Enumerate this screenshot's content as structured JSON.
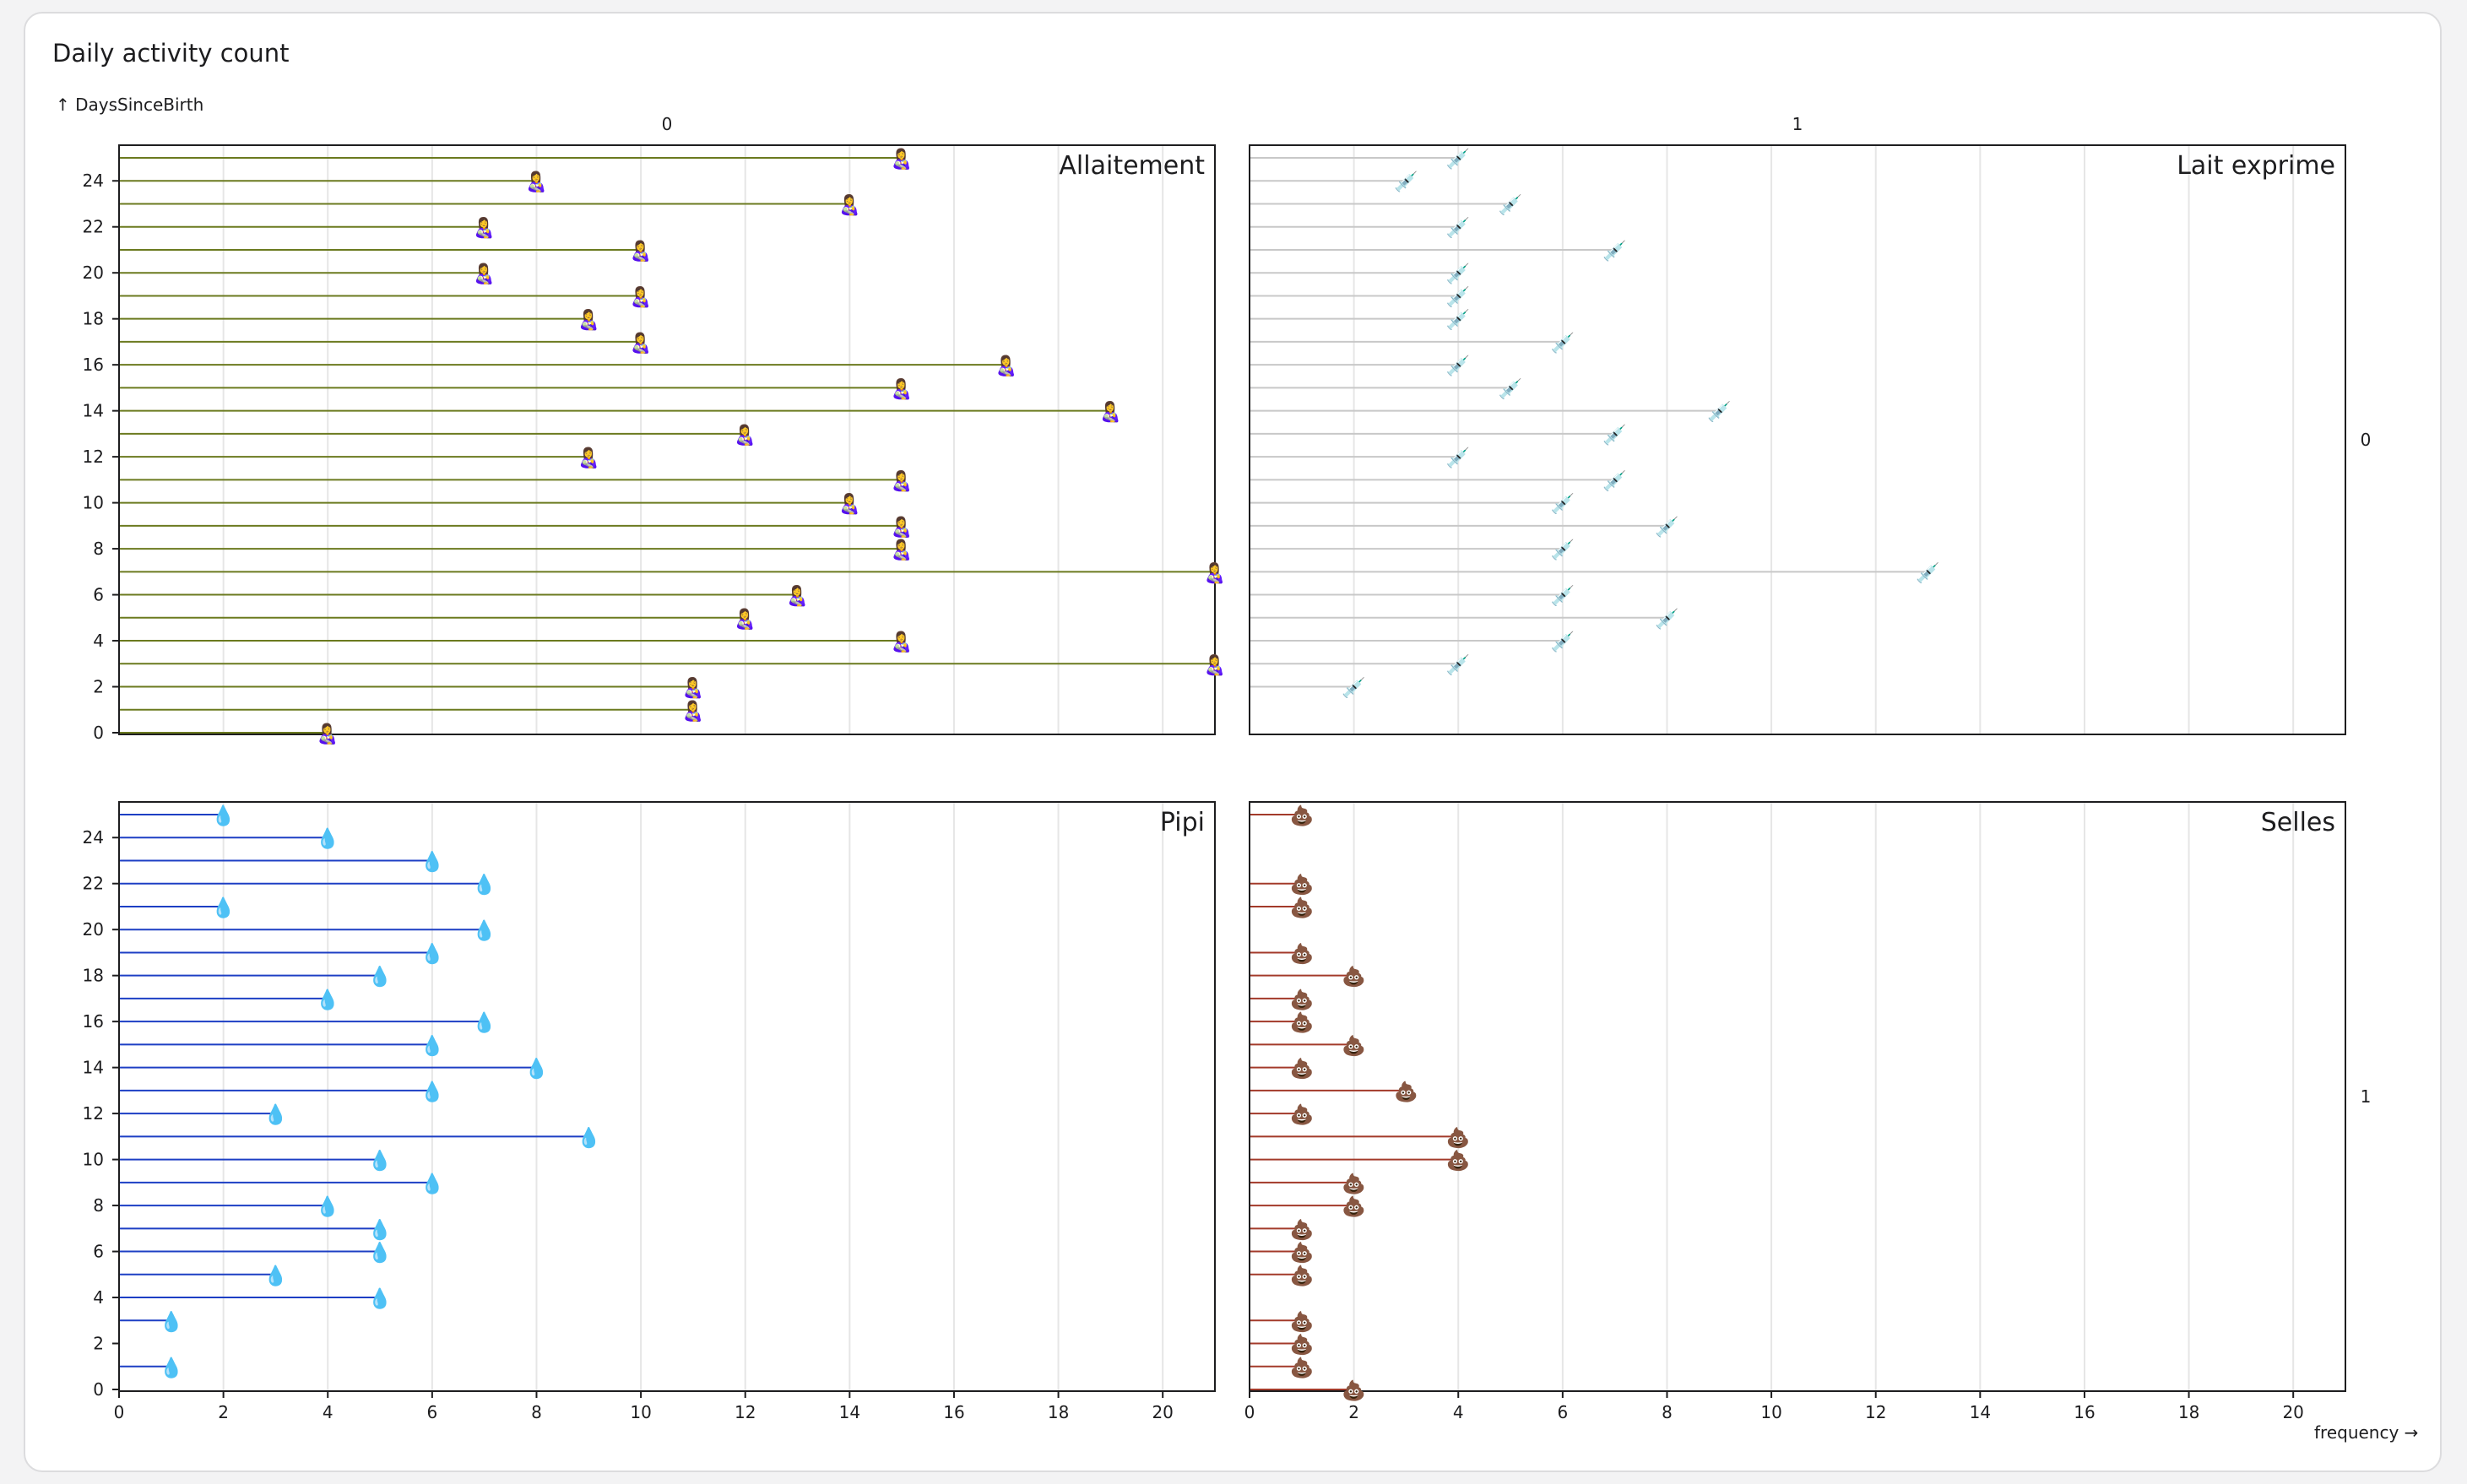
{
  "card": {
    "title": "Daily activity count"
  },
  "chart_data": {
    "type": "lollipop-facet",
    "title": "Daily activity count",
    "ylabel": "↑ DaysSinceBirth",
    "xlabel": "frequency →",
    "xlim": [
      0,
      21
    ],
    "ylim": [
      0,
      25
    ],
    "x_ticks": [
      0,
      2,
      4,
      6,
      8,
      10,
      12,
      14,
      16,
      18,
      20
    ],
    "y_ticks": [
      0,
      2,
      4,
      6,
      8,
      10,
      12,
      14,
      16,
      18,
      20,
      22,
      24
    ],
    "fx_labels": [
      "0",
      "1"
    ],
    "fy_labels": [
      "0",
      "1"
    ],
    "facets": [
      {
        "name": "Allaitement",
        "fx": 0,
        "fy": 0,
        "color": "#6b7a1f",
        "symbol": "👩‍🍼",
        "points": [
          [
            0,
            4
          ],
          [
            1,
            11
          ],
          [
            2,
            11
          ],
          [
            3,
            21
          ],
          [
            4,
            15
          ],
          [
            5,
            12
          ],
          [
            6,
            13
          ],
          [
            7,
            21
          ],
          [
            8,
            15
          ],
          [
            9,
            15
          ],
          [
            10,
            14
          ],
          [
            11,
            15
          ],
          [
            12,
            9
          ],
          [
            13,
            12
          ],
          [
            14,
            19
          ],
          [
            15,
            15
          ],
          [
            16,
            17
          ],
          [
            17,
            10
          ],
          [
            18,
            9
          ],
          [
            19,
            10
          ],
          [
            20,
            7
          ],
          [
            21,
            10
          ],
          [
            22,
            7
          ],
          [
            23,
            14
          ],
          [
            24,
            8
          ],
          [
            25,
            15
          ]
        ]
      },
      {
        "name": "Lait exprime",
        "fx": 1,
        "fy": 0,
        "color": "#c8c8c8",
        "symbol": "💉",
        "points": [
          [
            2,
            2
          ],
          [
            3,
            4
          ],
          [
            4,
            6
          ],
          [
            5,
            8
          ],
          [
            6,
            6
          ],
          [
            7,
            13
          ],
          [
            8,
            6
          ],
          [
            9,
            8
          ],
          [
            10,
            6
          ],
          [
            11,
            7
          ],
          [
            12,
            4
          ],
          [
            13,
            7
          ],
          [
            14,
            9
          ],
          [
            15,
            5
          ],
          [
            16,
            4
          ],
          [
            17,
            6
          ],
          [
            18,
            4
          ],
          [
            19,
            4
          ],
          [
            20,
            4
          ],
          [
            21,
            7
          ],
          [
            22,
            4
          ],
          [
            23,
            5
          ],
          [
            24,
            3
          ],
          [
            25,
            4
          ]
        ]
      },
      {
        "name": "Pipi",
        "fx": 0,
        "fy": 1,
        "color": "#1d3fc4",
        "symbol": "💧",
        "points": [
          [
            1,
            1
          ],
          [
            3,
            1
          ],
          [
            4,
            5
          ],
          [
            5,
            3
          ],
          [
            6,
            5
          ],
          [
            7,
            5
          ],
          [
            8,
            4
          ],
          [
            9,
            6
          ],
          [
            10,
            5
          ],
          [
            11,
            9
          ],
          [
            12,
            3
          ],
          [
            13,
            6
          ],
          [
            14,
            8
          ],
          [
            15,
            6
          ],
          [
            16,
            7
          ],
          [
            17,
            4
          ],
          [
            18,
            5
          ],
          [
            19,
            6
          ],
          [
            20,
            7
          ],
          [
            21,
            2
          ],
          [
            22,
            7
          ],
          [
            23,
            6
          ],
          [
            24,
            4
          ],
          [
            25,
            2
          ]
        ]
      },
      {
        "name": "Selles",
        "fx": 1,
        "fy": 1,
        "color": "#a33a2a",
        "symbol": "💩",
        "points": [
          [
            0,
            2
          ],
          [
            1,
            1
          ],
          [
            2,
            1
          ],
          [
            3,
            1
          ],
          [
            5,
            1
          ],
          [
            6,
            1
          ],
          [
            7,
            1
          ],
          [
            8,
            2
          ],
          [
            9,
            2
          ],
          [
            10,
            4
          ],
          [
            11,
            4
          ],
          [
            12,
            1
          ],
          [
            13,
            3
          ],
          [
            14,
            1
          ],
          [
            15,
            2
          ],
          [
            16,
            1
          ],
          [
            17,
            1
          ],
          [
            18,
            2
          ],
          [
            19,
            1
          ],
          [
            21,
            1
          ],
          [
            22,
            1
          ],
          [
            25,
            1
          ]
        ]
      }
    ]
  }
}
